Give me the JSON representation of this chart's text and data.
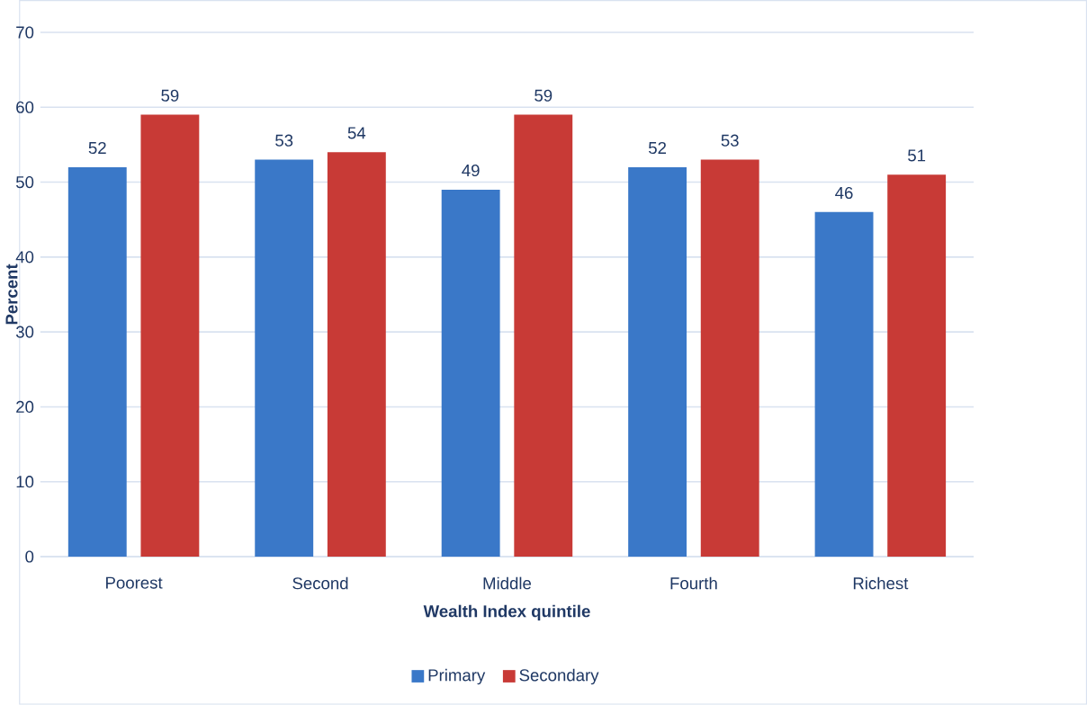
{
  "chart_data": {
    "type": "bar",
    "xlabel": "Wealth Index quintile",
    "ylabel": "Percent",
    "categories": [
      "Poorest",
      "Second",
      "Middle",
      "Fourth",
      "Richest"
    ],
    "series": [
      {
        "name": "Primary",
        "color": "#3a78c8",
        "values": [
          52,
          53,
          49,
          52,
          46
        ]
      },
      {
        "name": "Secondary",
        "color": "#c83a36",
        "values": [
          59,
          54,
          59,
          53,
          51
        ]
      }
    ],
    "ylim": [
      0,
      70
    ],
    "yticks": [
      0,
      10,
      20,
      30,
      40,
      50,
      60,
      70
    ],
    "grid": "y",
    "legend": "bottom",
    "data_labels": true
  }
}
